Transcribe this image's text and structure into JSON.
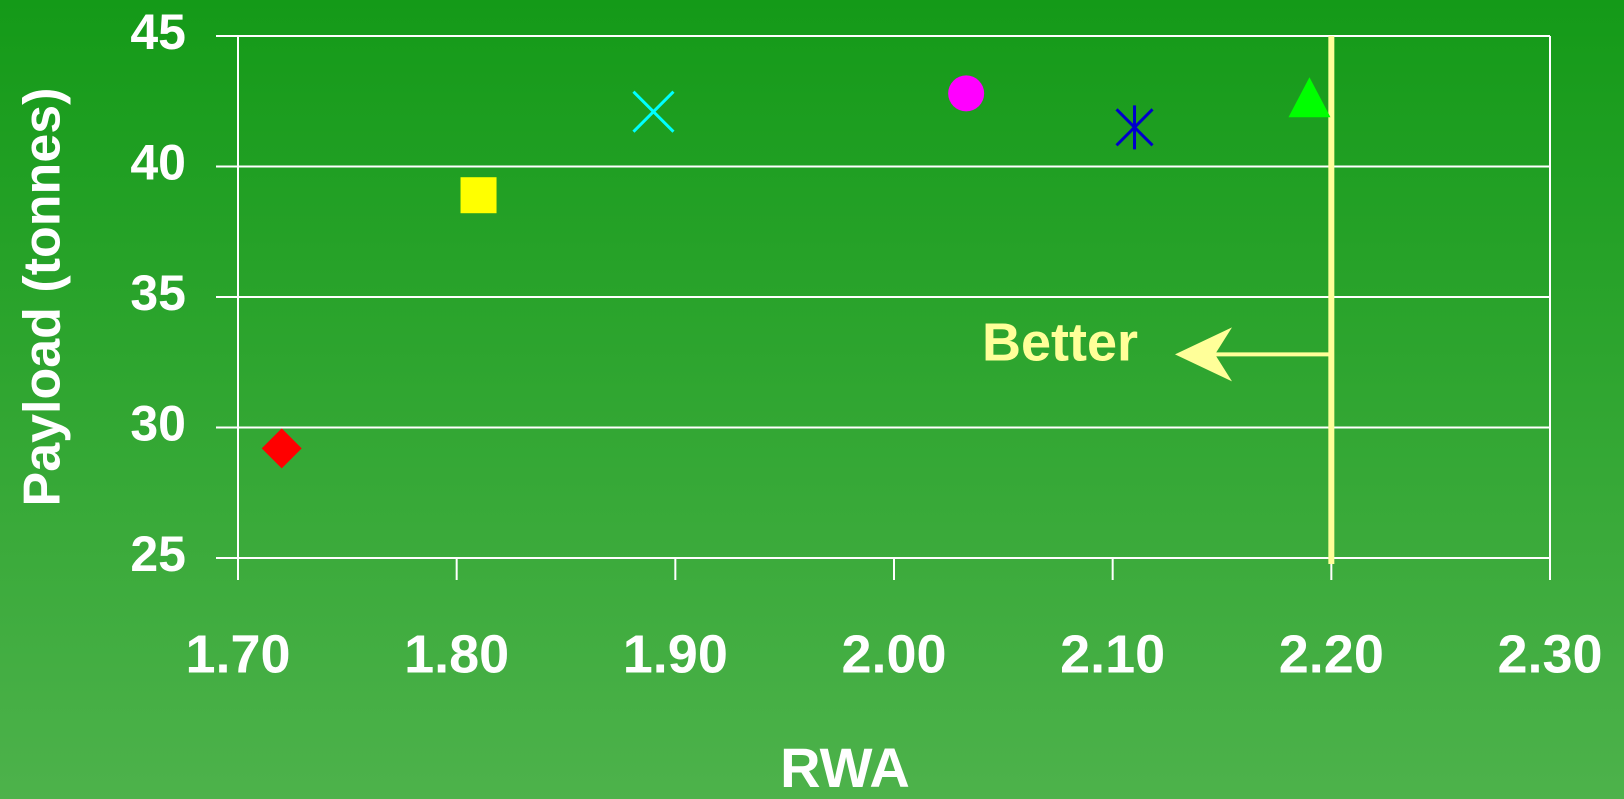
{
  "chart_data": {
    "type": "scatter",
    "xlabel": "RWA",
    "ylabel": "Payload (tonnes)",
    "xlim": [
      1.7,
      2.3
    ],
    "xticks": [
      {
        "value": 1.7,
        "label": "1.70"
      },
      {
        "value": 1.8,
        "label": "1.80"
      },
      {
        "value": 1.9,
        "label": "1.90"
      },
      {
        "value": 2.0,
        "label": "2.00"
      },
      {
        "value": 2.1,
        "label": "2.10"
      },
      {
        "value": 2.2,
        "label": "2.20"
      },
      {
        "value": 2.3,
        "label": "2.30"
      }
    ],
    "ylim": [
      25,
      45
    ],
    "yticks": [
      25,
      30,
      35,
      40,
      45
    ],
    "grid": true,
    "series": [
      {
        "marker": "diamond",
        "color": "#ff0000",
        "x": [
          1.72
        ],
        "y": [
          29.2
        ]
      },
      {
        "marker": "square",
        "color": "#ffff00",
        "x": [
          1.81
        ],
        "y": [
          38.9
        ]
      },
      {
        "marker": "x",
        "color": "#00ffff",
        "x": [
          1.89
        ],
        "y": [
          42.1
        ]
      },
      {
        "marker": "circle",
        "color": "#ff00ff",
        "x": [
          2.033
        ],
        "y": [
          42.8
        ]
      },
      {
        "marker": "star",
        "color": "#0000cc",
        "x": [
          2.11
        ],
        "y": [
          41.5
        ]
      },
      {
        "marker": "triangle",
        "color": "#00ff00",
        "x": [
          2.19
        ],
        "y": [
          42.5
        ]
      }
    ],
    "vline": {
      "x": 2.2,
      "color": "#ffff99"
    },
    "annotation": {
      "text": "Better",
      "y": 32.8,
      "color": "#ffff99"
    }
  }
}
